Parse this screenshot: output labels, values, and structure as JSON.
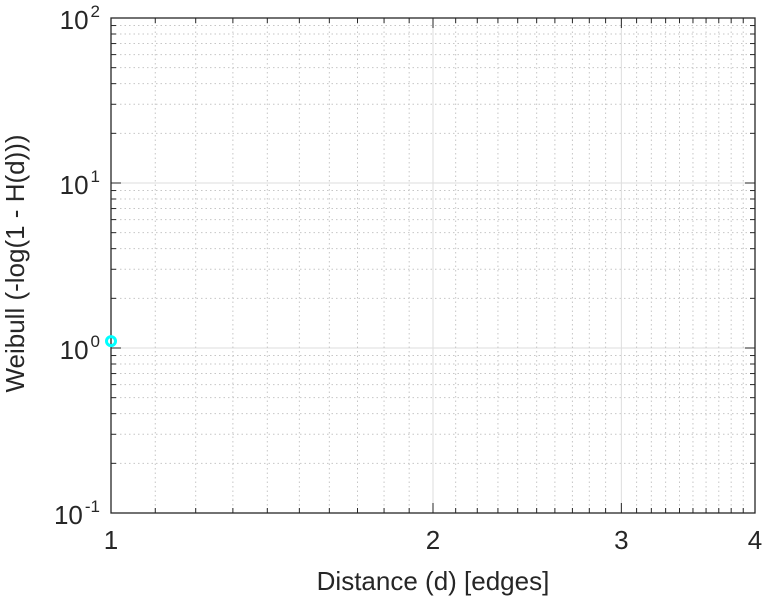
{
  "chart_data": {
    "type": "scatter",
    "title": "",
    "xlabel": "Distance (d) [edges]",
    "ylabel": "Weibull (-log(1 - H(d)))",
    "xscale": "log",
    "yscale": "log",
    "xlim": [
      1,
      4
    ],
    "ylim": [
      0.1,
      100
    ],
    "x_ticks": [
      {
        "value": 1,
        "label": "1"
      },
      {
        "value": 2,
        "label": "2"
      },
      {
        "value": 3,
        "label": "3"
      },
      {
        "value": 4,
        "label": "4"
      }
    ],
    "y_ticks": [
      {
        "value": 0.1,
        "base": "10",
        "exp": "-1"
      },
      {
        "value": 1,
        "base": "10",
        "exp": "0"
      },
      {
        "value": 10,
        "base": "10",
        "exp": "1"
      },
      {
        "value": 100,
        "base": "10",
        "exp": "2"
      }
    ],
    "grid": true,
    "legend": "none",
    "series": [
      {
        "color": "#00ffff",
        "marker": "circle",
        "points": [
          {
            "x": 1,
            "y": 1.1
          }
        ]
      }
    ]
  }
}
